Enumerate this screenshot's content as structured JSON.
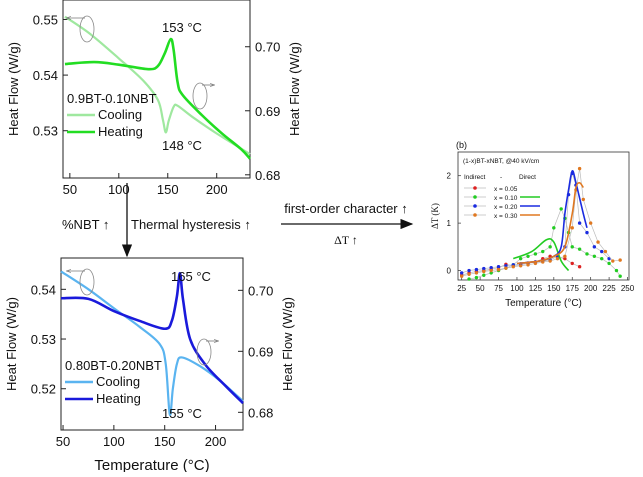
{
  "chart_data": [
    {
      "type": "line",
      "ylabel_left": "Heat Flow (W/g)",
      "ylabel_right": "Heat Flow (W/g)",
      "xlim": [
        43,
        234
      ],
      "xticks": [
        50,
        100,
        150,
        200
      ],
      "ylim_left": [
        0.5215,
        0.5535
      ],
      "yticks_left": [
        "0.55",
        "0.54",
        "0.53"
      ],
      "ylim_right": [
        0.6795,
        0.7073
      ],
      "yticks_right": [
        "0.70",
        "0.69",
        "0.68"
      ],
      "legend_title": "0.9BT-0.10NBT",
      "annotations": [
        "153 °C",
        "148 °C"
      ],
      "series": [
        {
          "name": "Cooling",
          "axis": "left",
          "color": "#9fe89f",
          "points": [
            [
              45,
              0.5505
            ],
            [
              70,
              0.5475
            ],
            [
              100,
              0.543
            ],
            [
              125,
              0.539
            ],
            [
              140,
              0.5355
            ],
            [
              145,
              0.532
            ],
            [
              148,
              0.5297
            ],
            [
              151,
              0.5318
            ],
            [
              156,
              0.5343
            ],
            [
              160,
              0.5345
            ],
            [
              175,
              0.5325
            ],
            [
              200,
              0.5295
            ],
            [
              234,
              0.5258
            ]
          ]
        },
        {
          "name": "Heating",
          "axis": "right",
          "color": "#22dd22",
          "points": [
            [
              45,
              0.6973
            ],
            [
              75,
              0.6976
            ],
            [
              100,
              0.6972
            ],
            [
              130,
              0.6965
            ],
            [
              140,
              0.697
            ],
            [
              147,
              0.699
            ],
            [
              153,
              0.7012
            ],
            [
              156,
              0.6995
            ],
            [
              160,
              0.6945
            ],
            [
              165,
              0.6925
            ],
            [
              185,
              0.6893
            ],
            [
              205,
              0.6865
            ],
            [
              225,
              0.684
            ],
            [
              234,
              0.6825
            ]
          ]
        }
      ]
    },
    {
      "type": "line",
      "xlabel": "Temperature (°C)",
      "ylabel_left": "Heat Flow (W/g)",
      "ylabel_right": "Heat Flow (W/g)",
      "xlim": [
        48,
        227
      ],
      "xticks": [
        50,
        100,
        150,
        200
      ],
      "ylim_left": [
        0.5117,
        0.5463
      ],
      "yticks_left": [
        "0.54",
        "0.53",
        "0.52"
      ],
      "ylim_right": [
        0.6771,
        0.7053
      ],
      "yticks_right": [
        "0.70",
        "0.69",
        "0.68"
      ],
      "legend_title": "0.80BT-0.20NBT",
      "annotations": [
        "165 °C",
        "155 °C"
      ],
      "series": [
        {
          "name": "Cooling",
          "axis": "left",
          "color": "#5ab4f0",
          "points": [
            [
              48,
              0.5436
            ],
            [
              75,
              0.54
            ],
            [
              100,
              0.5362
            ],
            [
              125,
              0.5325
            ],
            [
              145,
              0.529
            ],
            [
              151,
              0.525
            ],
            [
              155,
              0.5148
            ],
            [
              158,
              0.52
            ],
            [
              162,
              0.525
            ],
            [
              167,
              0.5263
            ],
            [
              185,
              0.5245
            ],
            [
              205,
              0.5215
            ],
            [
              227,
              0.5175
            ]
          ]
        },
        {
          "name": "Heating",
          "axis": "right",
          "color": "#1a1adb",
          "points": [
            [
              48,
              0.6987
            ],
            [
              75,
              0.6986
            ],
            [
              100,
              0.6966
            ],
            [
              125,
              0.695
            ],
            [
              150,
              0.6937
            ],
            [
              157,
              0.695
            ],
            [
              162,
              0.699
            ],
            [
              165,
              0.7028
            ],
            [
              168,
              0.6985
            ],
            [
              175,
              0.692
            ],
            [
              190,
              0.6878
            ],
            [
              210,
              0.6843
            ],
            [
              227,
              0.6815
            ]
          ]
        }
      ]
    },
    {
      "type": "scatter",
      "panel_label": "(b)",
      "title": "(1-x)BT-xNBT, @40 kV/cm",
      "xlabel": "Temperature (°C)",
      "ylabel": "ΔT (K)",
      "xlim": [
        20,
        252
      ],
      "xticks": [
        25,
        50,
        75,
        100,
        125,
        150,
        175,
        200,
        225,
        250
      ],
      "ylim": [
        -0.2,
        2.5
      ],
      "yticks": [
        0,
        1,
        2
      ],
      "legend_headers": [
        "Indirect",
        "-",
        "Direct"
      ],
      "series": [
        {
          "name": "x = 0.05",
          "color": "#dd2222",
          "indirect": [
            [
              25,
              -0.1
            ],
            [
              35,
              -0.05
            ],
            [
              45,
              -0.02
            ],
            [
              55,
              0.0
            ],
            [
              65,
              0.03
            ],
            [
              75,
              0.06
            ],
            [
              85,
              0.13
            ],
            [
              95,
              0.1
            ],
            [
              105,
              0.12
            ],
            [
              115,
              0.15
            ],
            [
              125,
              0.18
            ],
            [
              135,
              0.25
            ],
            [
              145,
              0.3
            ],
            [
              155,
              0.28
            ],
            [
              165,
              0.25
            ],
            [
              175,
              0.15
            ],
            [
              185,
              0.08
            ]
          ],
          "direct": []
        },
        {
          "name": "x = 0.10",
          "color": "#22cc22",
          "indirect": [
            [
              35,
              -0.18
            ],
            [
              45,
              -0.15
            ],
            [
              55,
              -0.1
            ],
            [
              65,
              -0.05
            ],
            [
              75,
              0.0
            ],
            [
              85,
              0.05
            ],
            [
              95,
              0.12
            ],
            [
              105,
              0.25
            ],
            [
              115,
              0.3
            ],
            [
              125,
              0.35
            ],
            [
              135,
              0.4
            ],
            [
              145,
              0.5
            ],
            [
              150,
              0.9
            ],
            [
              160,
              1.3
            ],
            [
              165,
              1.1
            ],
            [
              170,
              0.8
            ],
            [
              175,
              0.5
            ],
            [
              185,
              0.45
            ],
            [
              195,
              0.35
            ],
            [
              205,
              0.3
            ],
            [
              215,
              0.25
            ],
            [
              225,
              0.15
            ],
            [
              235,
              0.0
            ],
            [
              240,
              -0.12
            ]
          ],
          "direct": [
            [
              95,
              0.25
            ],
            [
              120,
              0.4
            ],
            [
              140,
              0.65
            ],
            [
              150,
              0.6
            ],
            [
              160,
              0.2
            ],
            [
              170,
              0.0
            ]
          ]
        },
        {
          "name": "x = 0.20",
          "color": "#1a2be0",
          "indirect": [
            [
              25,
              -0.05
            ],
            [
              35,
              0.0
            ],
            [
              45,
              0.02
            ],
            [
              55,
              0.04
            ],
            [
              65,
              0.06
            ],
            [
              75,
              0.08
            ],
            [
              85,
              0.1
            ],
            [
              95,
              0.12
            ],
            [
              105,
              0.14
            ],
            [
              115,
              0.16
            ],
            [
              125,
              0.18
            ],
            [
              135,
              0.2
            ],
            [
              145,
              0.22
            ],
            [
              155,
              0.3
            ],
            [
              165,
              0.5
            ],
            [
              170,
              1.6
            ],
            [
              175,
              2.05
            ],
            [
              180,
              1.8
            ],
            [
              185,
              1.0
            ],
            [
              195,
              0.8
            ],
            [
              205,
              0.5
            ],
            [
              215,
              0.4
            ],
            [
              225,
              0.25
            ]
          ],
          "direct": [
            [
              100,
              0.15
            ],
            [
              130,
              0.2
            ],
            [
              150,
              0.3
            ],
            [
              160,
              0.5
            ],
            [
              165,
              1.2
            ],
            [
              170,
              1.7
            ],
            [
              175,
              2.1
            ],
            [
              180,
              1.85
            ],
            [
              190,
              1.2
            ],
            [
              195,
              0.9
            ]
          ]
        },
        {
          "name": "x = 0.30",
          "color": "#e07820",
          "indirect": [
            [
              25,
              -0.12
            ],
            [
              35,
              -0.08
            ],
            [
              45,
              -0.05
            ],
            [
              55,
              -0.02
            ],
            [
              65,
              0.0
            ],
            [
              75,
              0.02
            ],
            [
              85,
              0.05
            ],
            [
              95,
              0.08
            ],
            [
              105,
              0.1
            ],
            [
              115,
              0.12
            ],
            [
              125,
              0.15
            ],
            [
              135,
              0.18
            ],
            [
              145,
              0.2
            ],
            [
              155,
              0.25
            ],
            [
              165,
              0.3
            ],
            [
              175,
              0.9
            ],
            [
              180,
              1.7
            ],
            [
              185,
              2.15
            ],
            [
              190,
              1.5
            ],
            [
              200,
              1.0
            ],
            [
              210,
              0.6
            ],
            [
              220,
              0.4
            ],
            [
              230,
              0.2
            ],
            [
              240,
              0.22
            ]
          ],
          "direct": [
            [
              100,
              0.15
            ],
            [
              130,
              0.2
            ],
            [
              150,
              0.3
            ],
            [
              165,
              0.5
            ],
            [
              175,
              1.2
            ],
            [
              180,
              1.75
            ],
            [
              185,
              1.85
            ],
            [
              190,
              1.75
            ]
          ]
        }
      ]
    }
  ],
  "arrows": {
    "down_left_label": "%NBT ↑",
    "down_right_label": "Thermal hysteresis ↑",
    "right_top_label": "first-order character ↑",
    "right_bottom_label": "ΔT ↑"
  }
}
